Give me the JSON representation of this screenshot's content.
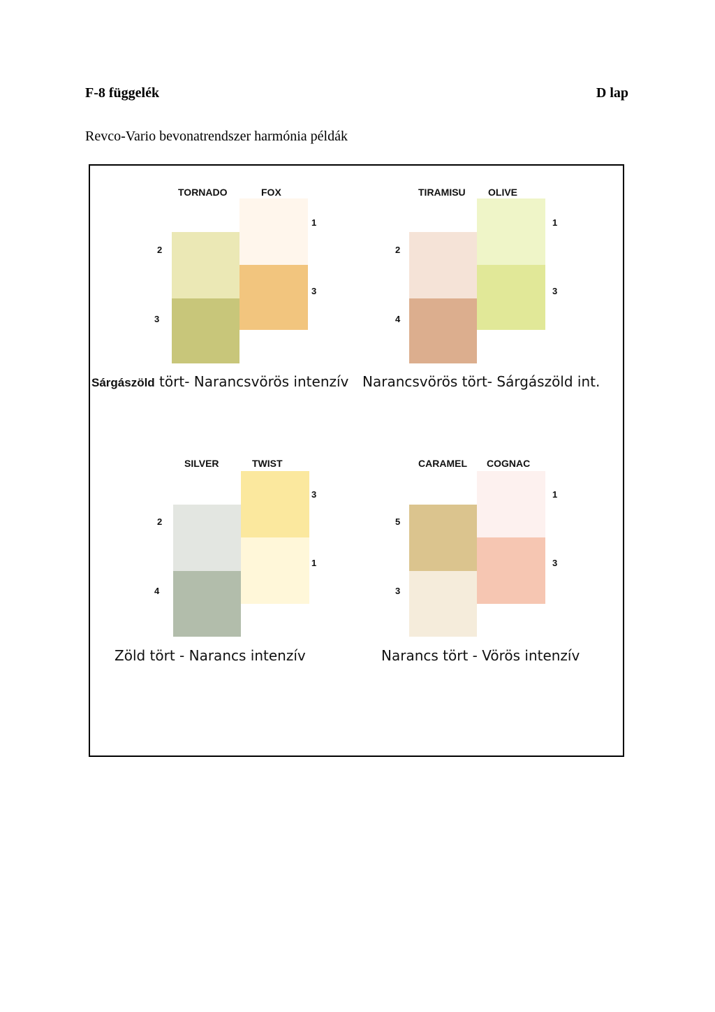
{
  "header": {
    "left": "F-8 függelék",
    "right": "D lap"
  },
  "subtitle": "Revco-Vario bevonatrendszer harmónia példák",
  "examples": [
    {
      "left_name": "TORNADO",
      "right_name": "FOX",
      "left_top": {
        "label": "2",
        "color": "#ebe8b5"
      },
      "left_bottom": {
        "label": "3",
        "color": "#c8c67a"
      },
      "right_top": {
        "label": "1",
        "color": "#fff6ec"
      },
      "right_bottom": {
        "label": "3",
        "color": "#f2c57e"
      },
      "caption_bold": "Sárgászöld",
      "caption": " tört- Narancsvörös intenzív"
    },
    {
      "left_name": "TIRAMISU",
      "right_name": "OLIVE",
      "left_top": {
        "label": "2",
        "color": "#f5e3d7"
      },
      "left_bottom": {
        "label": "4",
        "color": "#dcae8e"
      },
      "right_top": {
        "label": "1",
        "color": "#eff5c8"
      },
      "right_bottom": {
        "label": "3",
        "color": "#e1e898"
      },
      "caption_bold": "",
      "caption": "Narancsvörös tört- Sárgászöld int."
    },
    {
      "left_name": "SILVER",
      "right_name": "TWIST",
      "left_top": {
        "label": "2",
        "color": "#e3e6e1"
      },
      "left_bottom": {
        "label": "4",
        "color": "#b2bdab"
      },
      "right_top": {
        "label": "3",
        "color": "#fbe89e"
      },
      "right_bottom": {
        "label": "1",
        "color": "#fff7d9"
      },
      "caption_bold": "",
      "caption": "Zöld tört  -  Narancs intenzív"
    },
    {
      "left_name": "CARAMEL",
      "right_name": "COGNAC",
      "left_top": {
        "label": "5",
        "color": "#dbc48e"
      },
      "left_bottom": {
        "label": "3",
        "color": "#f5ecdb"
      },
      "right_top": {
        "label": "1",
        "color": "#fdf1ef"
      },
      "right_bottom": {
        "label": "3",
        "color": "#f6c6b2"
      },
      "caption_bold": "",
      "caption": "Narancs tört - Vörös intenzív"
    }
  ]
}
